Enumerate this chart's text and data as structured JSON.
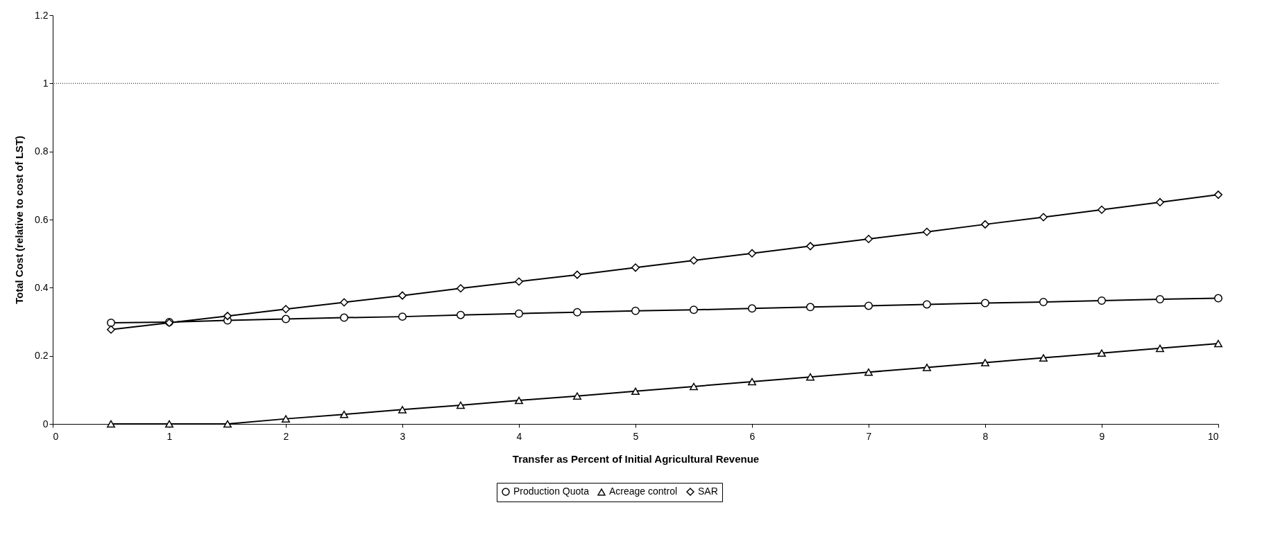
{
  "chart_data": {
    "type": "line",
    "xlabel": "Transfer as Percent of Initial Agricultural Revenue",
    "ylabel": "Total Cost (relative to cost of LST)",
    "x": [
      0.5,
      1,
      1.5,
      2,
      2.5,
      3,
      3.5,
      4,
      4.5,
      5,
      5.5,
      6,
      6.5,
      7,
      7.5,
      8,
      8.5,
      9,
      9.5,
      10
    ],
    "series": [
      {
        "name": "Production Quota",
        "color": "#000000",
        "marker": "circle",
        "values": [
          0.297,
          0.299,
          0.304,
          0.308,
          0.312,
          0.315,
          0.32,
          0.324,
          0.328,
          0.332,
          0.335,
          0.339,
          0.343,
          0.347,
          0.351,
          0.355,
          0.358,
          0.362,
          0.366,
          0.369
        ]
      },
      {
        "name": "Acreage control",
        "color": "#000000",
        "marker": "triangle",
        "values": [
          0,
          0,
          0,
          0.015,
          0.028,
          0.042,
          0.055,
          0.069,
          0.082,
          0.096,
          0.11,
          0.124,
          0.138,
          0.152,
          0.166,
          0.18,
          0.194,
          0.208,
          0.222,
          0.236
        ]
      },
      {
        "name": "SAR",
        "color": "#000000",
        "marker": "diamond",
        "values": [
          0.277,
          0.297,
          0.317,
          0.337,
          0.357,
          0.377,
          0.398,
          0.418,
          0.438,
          0.459,
          0.48,
          0.501,
          0.522,
          0.543,
          0.564,
          0.586,
          0.607,
          0.629,
          0.651,
          0.673
        ]
      }
    ],
    "xlim": [
      0,
      10
    ],
    "xticks": [
      0,
      1,
      2,
      3,
      4,
      5,
      6,
      7,
      8,
      9,
      10
    ],
    "ylim": [
      0,
      1.2
    ],
    "yticks": [
      0,
      0.2,
      0.4,
      0.6,
      0.8,
      1,
      1.2
    ],
    "ref_lines": [
      {
        "axis": "y",
        "value": 1,
        "line_style": "dotted",
        "color": "#000000"
      }
    ],
    "grid": false,
    "legend": "bottom",
    "line_style": "solid"
  }
}
